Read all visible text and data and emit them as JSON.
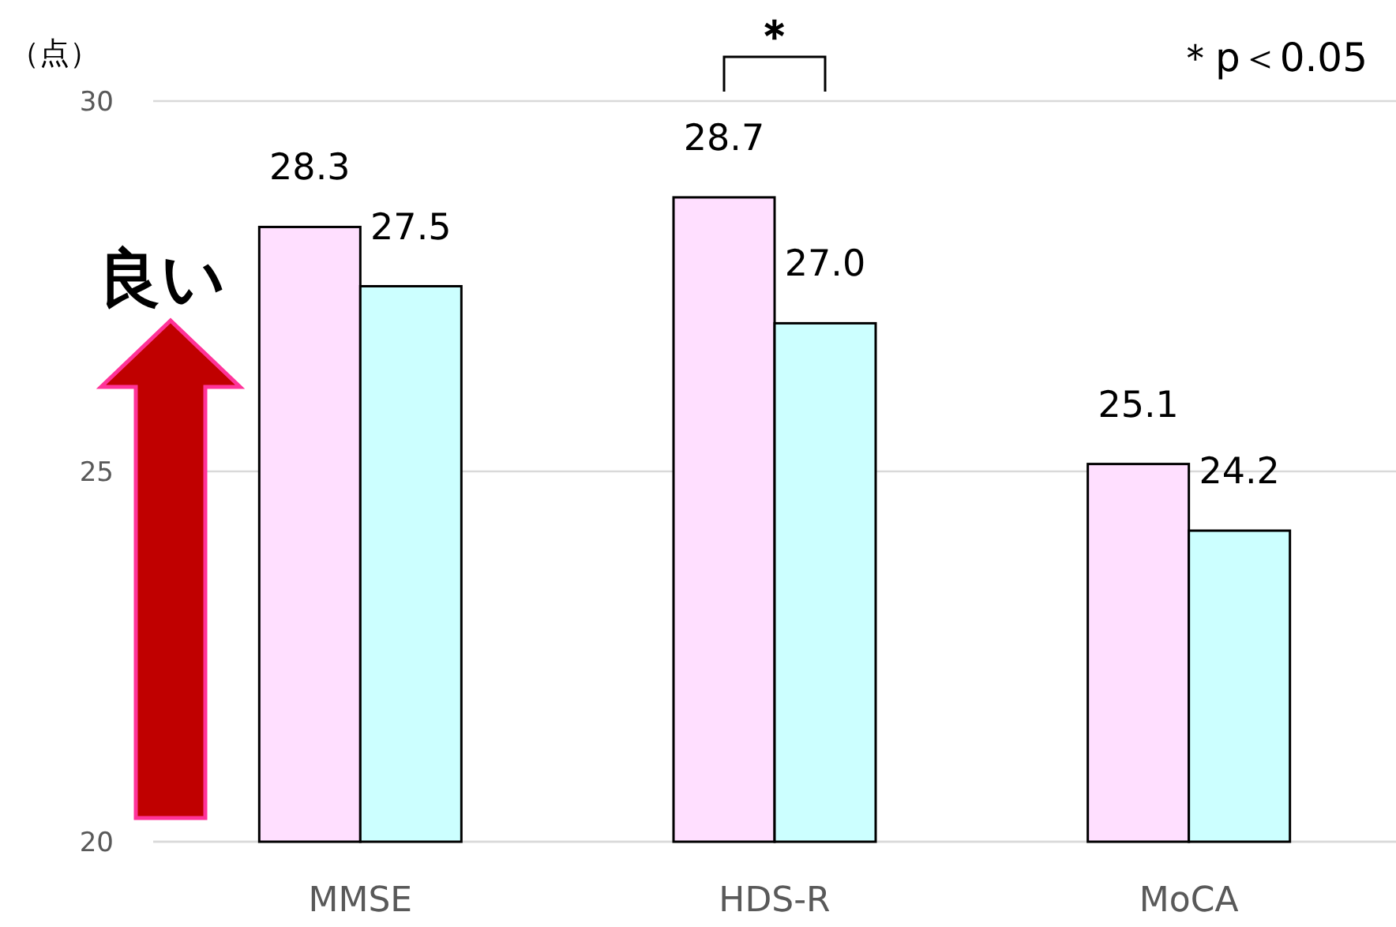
{
  "chart_data": {
    "type": "bar",
    "ylabel": "（点）",
    "categories": [
      "MMSE",
      "HDS-R",
      "MoCA"
    ],
    "series": [
      {
        "color": "#ffdfff",
        "values": [
          28.3,
          28.7,
          25.1
        ],
        "value_labels": [
          "28.3",
          "28.7",
          "25.1"
        ]
      },
      {
        "color": "#ccffff",
        "values": [
          27.5,
          27.0,
          24.2
        ],
        "value_labels": [
          "27.5",
          "27.0",
          "24.2"
        ]
      }
    ],
    "ylim": [
      20,
      30
    ],
    "yticks": [
      20,
      25,
      30
    ],
    "grid": "y",
    "annotations": [
      "＊",
      "＊p＜0.05",
      "良い"
    ]
  }
}
